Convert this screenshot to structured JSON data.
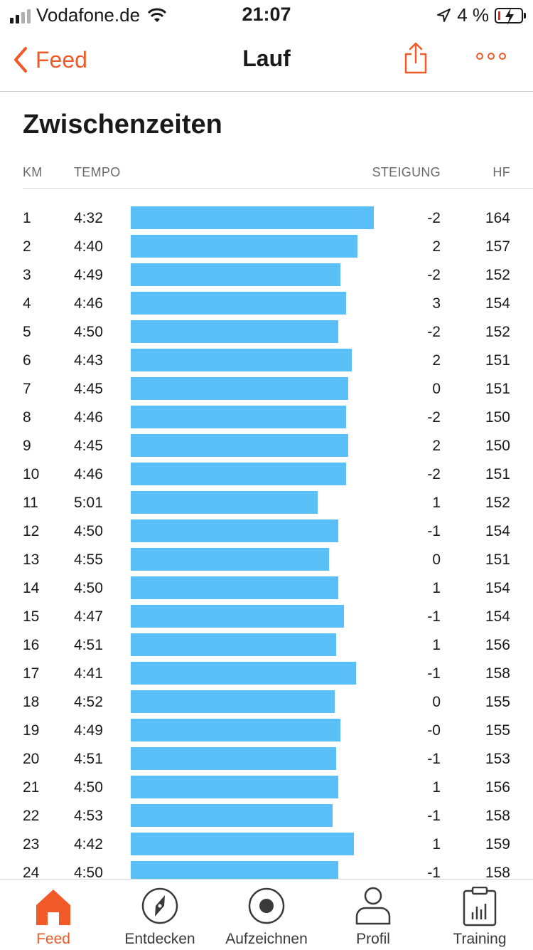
{
  "status_bar": {
    "carrier": "Vodafone.de",
    "time": "21:07",
    "battery": "4 %"
  },
  "nav": {
    "back_label": "Feed",
    "title": "Lauf"
  },
  "section_title": "Zwischenzeiten",
  "columns": {
    "km": "KM",
    "tempo": "TEMPO",
    "steigung": "STEIGUNG",
    "hf": "HF"
  },
  "splits": [
    {
      "km": "1",
      "tempo": "4:32",
      "steigung": "-2",
      "hf": "164"
    },
    {
      "km": "2",
      "tempo": "4:40",
      "steigung": "2",
      "hf": "157"
    },
    {
      "km": "3",
      "tempo": "4:49",
      "steigung": "-2",
      "hf": "152"
    },
    {
      "km": "4",
      "tempo": "4:46",
      "steigung": "3",
      "hf": "154"
    },
    {
      "km": "5",
      "tempo": "4:50",
      "steigung": "-2",
      "hf": "152"
    },
    {
      "km": "6",
      "tempo": "4:43",
      "steigung": "2",
      "hf": "151"
    },
    {
      "km": "7",
      "tempo": "4:45",
      "steigung": "0",
      "hf": "151"
    },
    {
      "km": "8",
      "tempo": "4:46",
      "steigung": "-2",
      "hf": "150"
    },
    {
      "km": "9",
      "tempo": "4:45",
      "steigung": "2",
      "hf": "150"
    },
    {
      "km": "10",
      "tempo": "4:46",
      "steigung": "-2",
      "hf": "151"
    },
    {
      "km": "11",
      "tempo": "5:01",
      "steigung": "1",
      "hf": "152"
    },
    {
      "km": "12",
      "tempo": "4:50",
      "steigung": "-1",
      "hf": "154"
    },
    {
      "km": "13",
      "tempo": "4:55",
      "steigung": "0",
      "hf": "151"
    },
    {
      "km": "14",
      "tempo": "4:50",
      "steigung": "1",
      "hf": "154"
    },
    {
      "km": "15",
      "tempo": "4:47",
      "steigung": "-1",
      "hf": "154"
    },
    {
      "km": "16",
      "tempo": "4:51",
      "steigung": "1",
      "hf": "156"
    },
    {
      "km": "17",
      "tempo": "4:41",
      "steigung": "-1",
      "hf": "158"
    },
    {
      "km": "18",
      "tempo": "4:52",
      "steigung": "0",
      "hf": "155"
    },
    {
      "km": "19",
      "tempo": "4:49",
      "steigung": "-0",
      "hf": "155"
    },
    {
      "km": "20",
      "tempo": "4:51",
      "steigung": "-1",
      "hf": "153"
    },
    {
      "km": "21",
      "tempo": "4:50",
      "steigung": "1",
      "hf": "156"
    },
    {
      "km": "22",
      "tempo": "4:53",
      "steigung": "-1",
      "hf": "158"
    },
    {
      "km": "23",
      "tempo": "4:42",
      "steigung": "1",
      "hf": "159"
    },
    {
      "km": "24",
      "tempo": "4:50",
      "steigung": "-1",
      "hf": "158"
    }
  ],
  "tabs": [
    {
      "label": "Feed",
      "icon": "home-icon",
      "active": true
    },
    {
      "label": "Entdecken",
      "icon": "compass-icon",
      "active": false
    },
    {
      "label": "Aufzeichnen",
      "icon": "record-icon",
      "active": false
    },
    {
      "label": "Profil",
      "icon": "profile-icon",
      "active": false
    },
    {
      "label": "Training",
      "icon": "clipboard-chart-icon",
      "active": false
    }
  ],
  "colors": {
    "accent": "#f05a28",
    "bar": "#5bbff7",
    "text": "#1a1a1a"
  }
}
